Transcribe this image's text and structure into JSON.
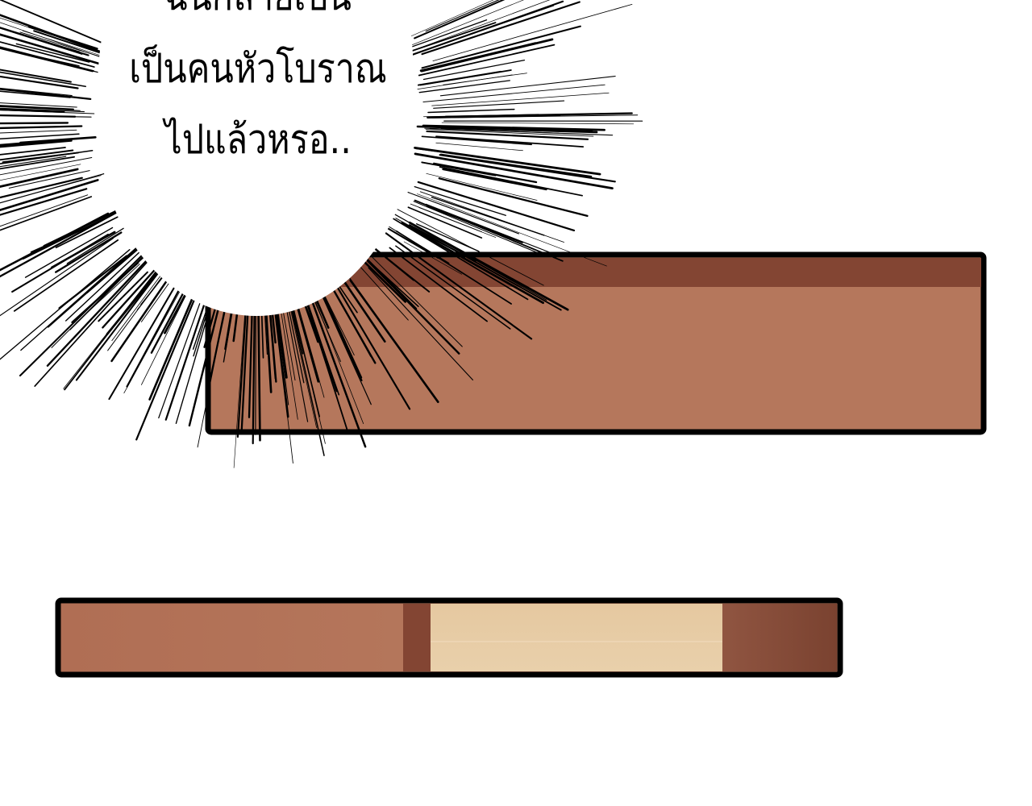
{
  "speech_bubble": {
    "lines": [
      "ฉันกลายเป็น",
      "เป็นคนหัวโบราณ",
      "ไปแล้วหรอ.."
    ]
  },
  "colors": {
    "background": "#ffffff",
    "outline": "#000000",
    "wood_light": "#b5775c",
    "wood_dark": "#834533",
    "cream": "#e6caa2"
  }
}
